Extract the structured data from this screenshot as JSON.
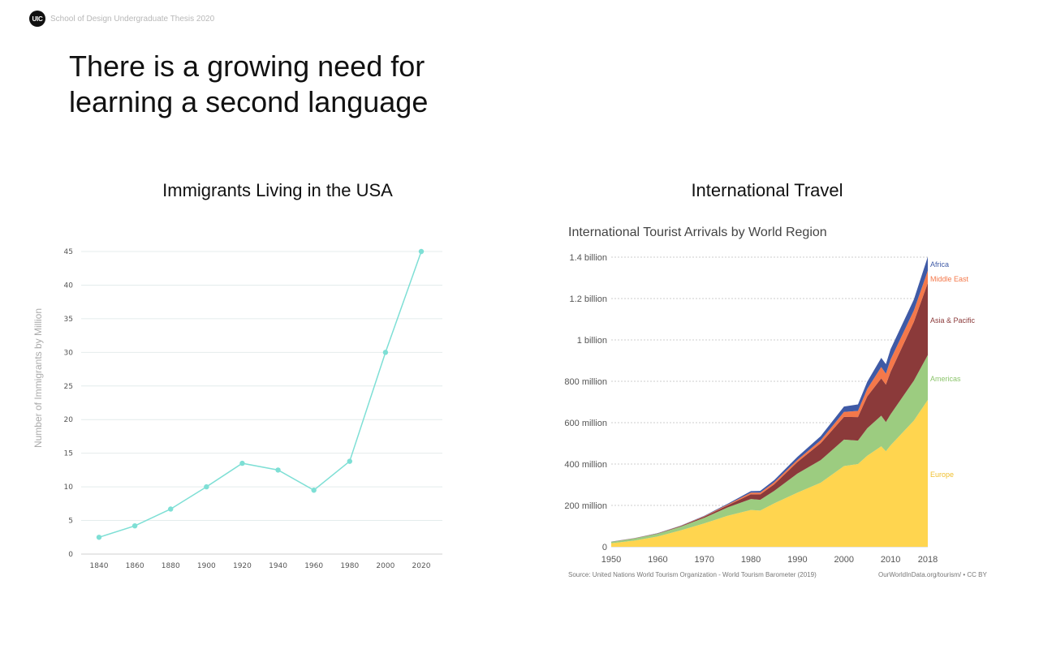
{
  "header": {
    "logo_text": "UIC",
    "text": "School of Design Undergraduate Thesis 2020"
  },
  "slide": {
    "title_line1": "There is a growing need for",
    "title_line2": "learning a second language"
  },
  "colors": {
    "immigrant_line": "#7edfd5",
    "europe": "#ffd54f",
    "americas": "#9ccc80",
    "asia_pacific": "#8b3a3a",
    "middle_east": "#f4784a",
    "africa": "#3f5aa6"
  },
  "chart_data": [
    {
      "type": "line",
      "title": "Immigrants Living in the USA",
      "xlabel": "",
      "ylabel": "Number of Immigrants by Million",
      "x": [
        1840,
        1860,
        1880,
        1900,
        1920,
        1940,
        1960,
        1980,
        2000,
        2020
      ],
      "values": [
        2.5,
        4.2,
        6.7,
        10,
        13.5,
        12.5,
        9.5,
        13.8,
        30,
        45
      ],
      "ylim": [
        0,
        45
      ],
      "yticks": [
        0,
        5,
        10,
        15,
        20,
        25,
        30,
        35,
        40,
        45
      ],
      "grid": true
    },
    {
      "type": "area",
      "title": "International Travel",
      "subtitle": "International Tourist Arrivals by World Region",
      "x": [
        1950,
        1955,
        1960,
        1965,
        1970,
        1975,
        1980,
        1982,
        1985,
        1990,
        1995,
        2000,
        2003,
        2005,
        2008,
        2009,
        2010,
        2015,
        2018
      ],
      "xticks": [
        1950,
        1960,
        1970,
        1980,
        1990,
        2000,
        2010,
        2018
      ],
      "ylim": [
        0,
        1400000000
      ],
      "yticks": [
        0,
        200000000,
        400000000,
        600000000,
        800000000,
        1000000000,
        1200000000,
        1400000000
      ],
      "ytick_labels": [
        "0",
        "200 million",
        "400 million",
        "600 million",
        "800 million",
        "1 billion",
        "1.2 billion",
        "1.4 billion"
      ],
      "series": [
        {
          "name": "Europe",
          "values": [
            17000000,
            30000000,
            50000000,
            80000000,
            113000000,
            150000000,
            178000000,
            175000000,
            210000000,
            262000000,
            310000000,
            390000000,
            400000000,
            440000000,
            486000000,
            462000000,
            490000000,
            610000000,
            710000000
          ]
        },
        {
          "name": "Americas",
          "values": [
            7000000,
            10000000,
            13000000,
            18000000,
            27000000,
            40000000,
            53000000,
            52000000,
            60000000,
            92000000,
            109000000,
            128000000,
            113000000,
            133000000,
            148000000,
            141000000,
            150000000,
            193000000,
            217000000
          ]
        },
        {
          "name": "Asia & Pacific",
          "values": [
            500000,
            1000000,
            1500000,
            3000000,
            6000000,
            10000000,
            23000000,
            26000000,
            32000000,
            56000000,
            82000000,
            110000000,
            114000000,
            154000000,
            180000000,
            181000000,
            205000000,
            284000000,
            348000000
          ]
        },
        {
          "name": "Middle East",
          "values": [
            200000,
            500000,
            700000,
            1000000,
            2000000,
            4000000,
            8000000,
            9000000,
            10000000,
            10000000,
            14000000,
            24000000,
            30000000,
            36000000,
            55000000,
            53000000,
            60000000,
            55000000,
            60000000
          ]
        },
        {
          "name": "Africa",
          "values": [
            300000,
            500000,
            800000,
            1000000,
            2000000,
            4000000,
            7000000,
            8000000,
            10000000,
            15000000,
            20000000,
            26000000,
            31000000,
            35000000,
            44000000,
            46000000,
            50000000,
            53000000,
            67000000
          ]
        }
      ],
      "source": "Source: United Nations World Tourism Organization - World Tourism Barometer (2019)",
      "credit": "OurWorldInData.org/tourism/ • CC BY"
    }
  ]
}
